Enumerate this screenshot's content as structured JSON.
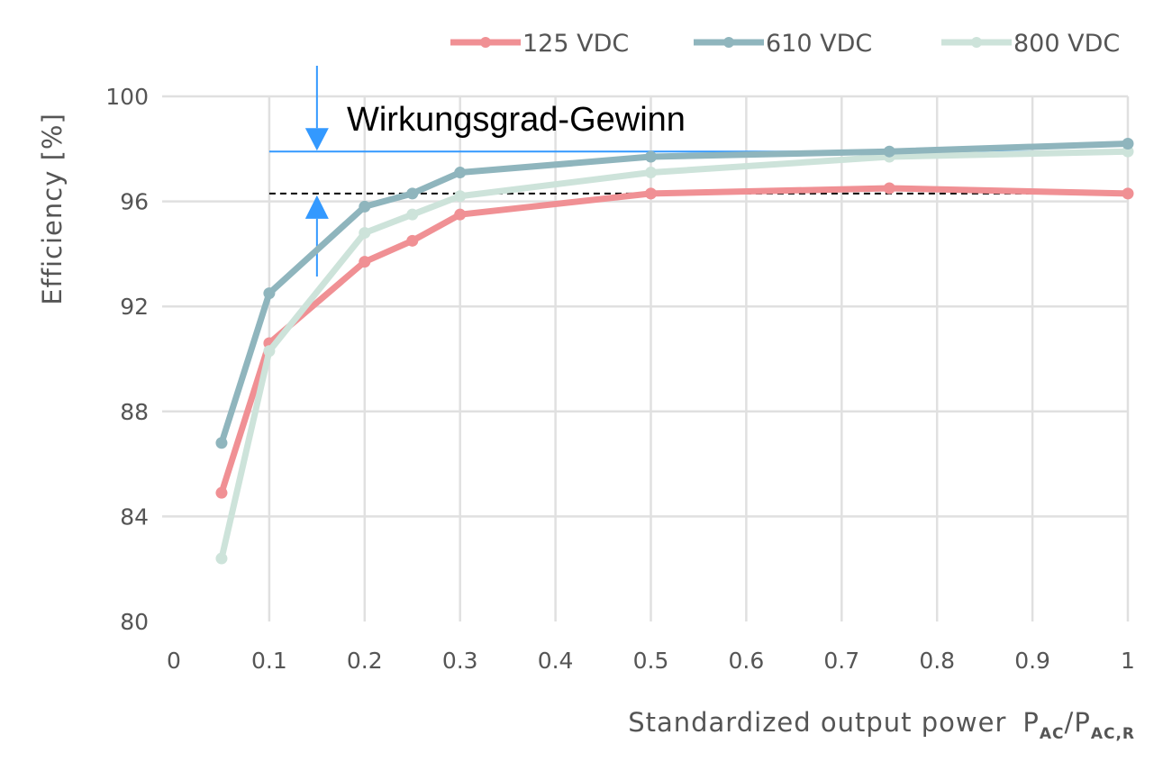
{
  "chart_data": {
    "type": "line",
    "xlabel": "Standardized output power",
    "xlabel_symbol": {
      "p1": "P",
      "s1": "AC",
      "sep": "/",
      "p2": "P",
      "s2": "AC,R"
    },
    "ylabel": "Efficiency  [%]",
    "xlim": [
      0,
      1
    ],
    "ylim": [
      80,
      100
    ],
    "xticks": [
      0,
      0.1,
      0.2,
      0.3,
      0.4,
      0.5,
      0.6,
      0.7,
      0.8,
      0.9,
      1
    ],
    "xtick_labels": [
      "0",
      "0.1",
      "0.2",
      "0.3",
      "0.4",
      "0.5",
      "0.6",
      "0.7",
      "0.8",
      "0.9",
      "1"
    ],
    "yticks": [
      80,
      84,
      88,
      92,
      96,
      100
    ],
    "ytick_labels": [
      "80",
      "84",
      "88",
      "92",
      "96",
      "100"
    ],
    "grid": true,
    "legend_position": "top-right",
    "x": [
      0.05,
      0.1,
      0.2,
      0.25,
      0.3,
      0.5,
      0.75,
      1
    ],
    "series": [
      {
        "name": "125 VDC",
        "color": "#f09094",
        "values": [
          84.9,
          90.6,
          93.7,
          94.5,
          95.5,
          96.3,
          96.5,
          96.3
        ]
      },
      {
        "name": "610 VDC",
        "color": "#8fb5bd",
        "values": [
          86.8,
          92.5,
          95.8,
          96.3,
          97.1,
          97.7,
          97.9,
          98.2
        ]
      },
      {
        "name": "800 VDC",
        "color": "#cde3da",
        "values": [
          82.4,
          90.3,
          94.8,
          95.5,
          96.2,
          97.1,
          97.7,
          97.9
        ]
      }
    ],
    "annotation": {
      "text": "Wirkungsgrad-Gewinn",
      "color": "#3399ff",
      "upper_level": 97.9,
      "lower_level": 96.3,
      "arrow_x": 0.15,
      "line_x_range": [
        0.1,
        0.98
      ]
    }
  }
}
